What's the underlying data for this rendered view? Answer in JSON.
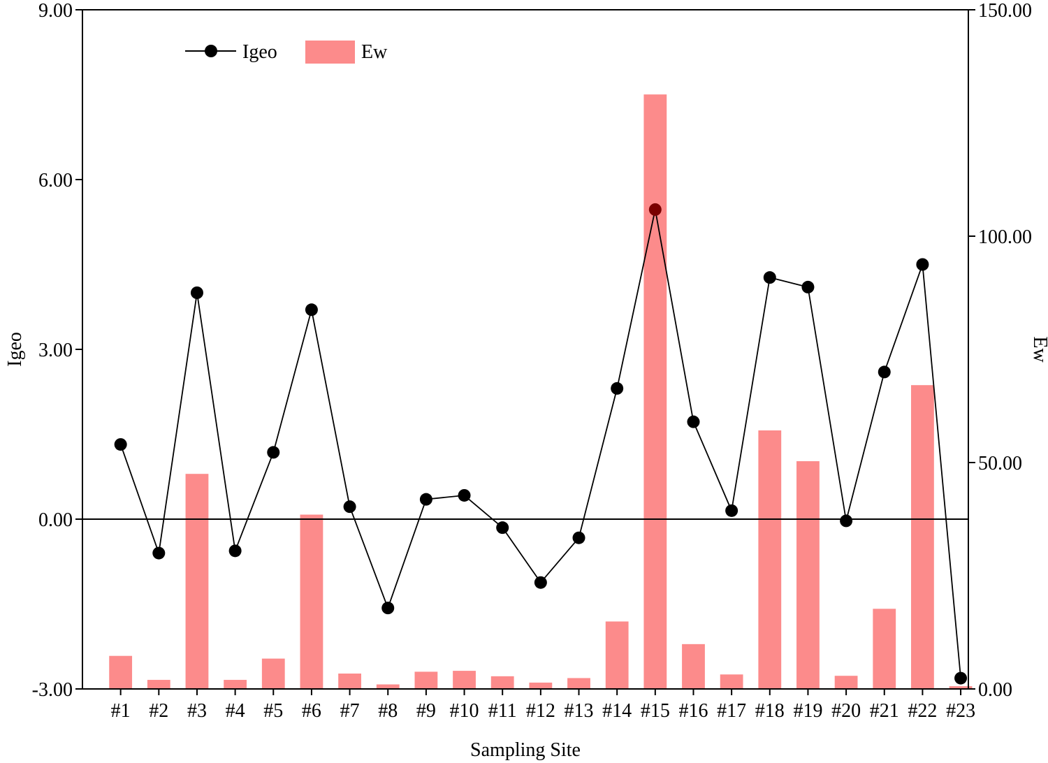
{
  "chart_data": {
    "type": "bar+line",
    "categories": [
      "#1",
      "#2",
      "#3",
      "#4",
      "#5",
      "#6",
      "#7",
      "#8",
      "#9",
      "#10",
      "#11",
      "#12",
      "#13",
      "#14",
      "#15",
      "#16",
      "#17",
      "#18",
      "#19",
      "#20",
      "#21",
      "#22",
      "#23"
    ],
    "series": [
      {
        "name": "Ew",
        "type": "bar",
        "axis": "right",
        "values": [
          7.3,
          2.0,
          47.5,
          2.0,
          6.7,
          38.5,
          3.4,
          1.0,
          3.8,
          4.0,
          2.8,
          1.4,
          2.4,
          14.9,
          131.3,
          9.9,
          3.2,
          57.1,
          50.3,
          2.9,
          17.7,
          67.1,
          0.6
        ]
      },
      {
        "name": "Igeo",
        "type": "line",
        "axis": "left",
        "values": [
          1.32,
          -0.6,
          4.0,
          -0.56,
          1.18,
          3.7,
          0.22,
          -1.57,
          0.35,
          0.42,
          -0.15,
          -1.12,
          -0.33,
          2.31,
          5.47,
          1.72,
          0.15,
          4.27,
          4.1,
          -0.03,
          2.6,
          4.5,
          -2.81
        ]
      }
    ],
    "xlabel": "Sampling Site",
    "ylabel": "Igeo",
    "y2label": "Ew",
    "ylim": [
      -3,
      9
    ],
    "y2lim": [
      0,
      150
    ],
    "yticks": [
      "-3.00",
      "0.00",
      "3.00",
      "6.00",
      "9.00"
    ],
    "y2ticks": [
      "0.00",
      "50.00",
      "100.00",
      "150.00"
    ],
    "reference_line": 0,
    "grid": false,
    "legend_position": "top-left",
    "colors": {
      "bar": "#fc8b8b",
      "line": "#000000",
      "marker": "#000000",
      "highlight_marker": "#7a0000"
    },
    "highlight_index": 14
  }
}
